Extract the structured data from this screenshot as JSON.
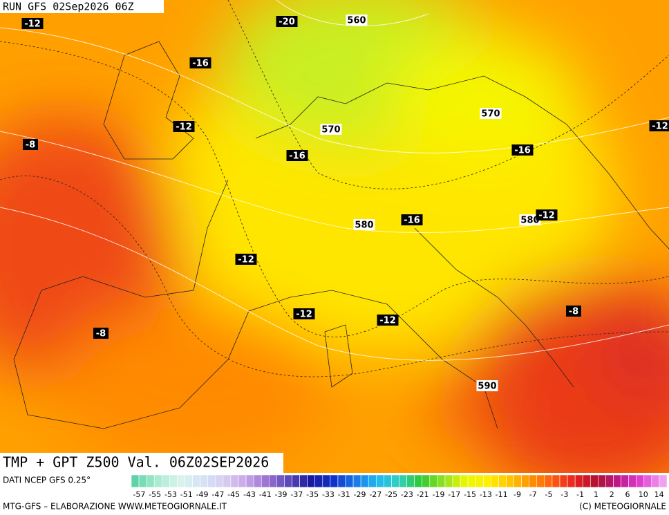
{
  "header": {
    "run": "RUN GFS 02Sep2026 06Z"
  },
  "map": {
    "labels": [
      "-12",
      "-20",
      "560",
      "-16",
      "-12",
      "570",
      "570",
      "-12",
      "-8",
      "-16",
      "-16",
      "580",
      "-16",
      "580",
      "-12",
      "-12",
      "-12",
      "-12",
      "-8",
      "-8",
      "590"
    ]
  },
  "title": "TMP + GPT Z500 Val. 06Z02SEP2026",
  "footer": {
    "source": "DATI NCEP GFS 0.25°",
    "credit_left": "MTG-GFS – ELABORAZIONE WWW.METEOGIORNALE.IT",
    "credit_right": "(C) METEOGIORNALE",
    "colorbar": {
      "ticks": [
        -57,
        -55,
        -53,
        -51,
        -49,
        -47,
        -45,
        -43,
        -41,
        -39,
        -37,
        -35,
        -33,
        -31,
        -29,
        -27,
        -25,
        -23,
        -21,
        -19,
        -17,
        -15,
        -13,
        -11,
        -9,
        -7,
        -5,
        -3,
        -1,
        1,
        2,
        6,
        10,
        14
      ]
    }
  }
}
